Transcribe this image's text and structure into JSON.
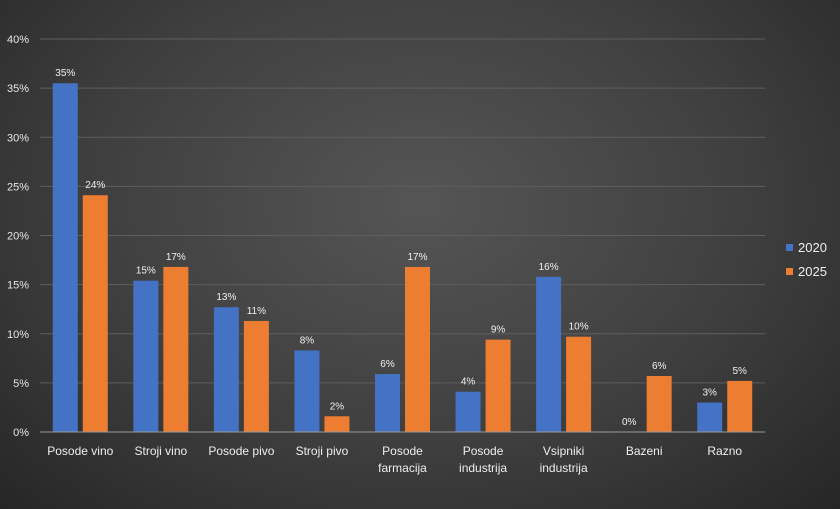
{
  "chart_data": {
    "type": "bar",
    "categories": [
      "Posode vino",
      "Stroji vino",
      "Posode pivo",
      "Stroji pivo",
      "Posode farmacija",
      "Posode industrija",
      "Vsipniki industrija",
      "Bazeni",
      "Razno"
    ],
    "series": [
      {
        "name": "2020",
        "color": "#4472c4",
        "values": [
          35.5,
          15.4,
          12.7,
          8.3,
          5.9,
          4.1,
          15.8,
          0,
          3.0
        ],
        "labels": [
          "35%",
          "15%",
          "13%",
          "8%",
          "6%",
          "4%",
          "16%",
          "0%",
          "3%"
        ]
      },
      {
        "name": "2025",
        "color": "#ed7d31",
        "values": [
          24.1,
          16.8,
          11.3,
          1.6,
          16.8,
          9.4,
          9.7,
          5.7,
          5.2
        ],
        "labels": [
          "24%",
          "17%",
          "11%",
          "2%",
          "17%",
          "9%",
          "10%",
          "6%",
          "5%"
        ]
      }
    ],
    "yticks": [
      "0%",
      "5%",
      "10%",
      "15%",
      "20%",
      "25%",
      "30%",
      "35%",
      "40%"
    ],
    "ylim": [
      0,
      40
    ],
    "grid": true,
    "legend": "right"
  }
}
